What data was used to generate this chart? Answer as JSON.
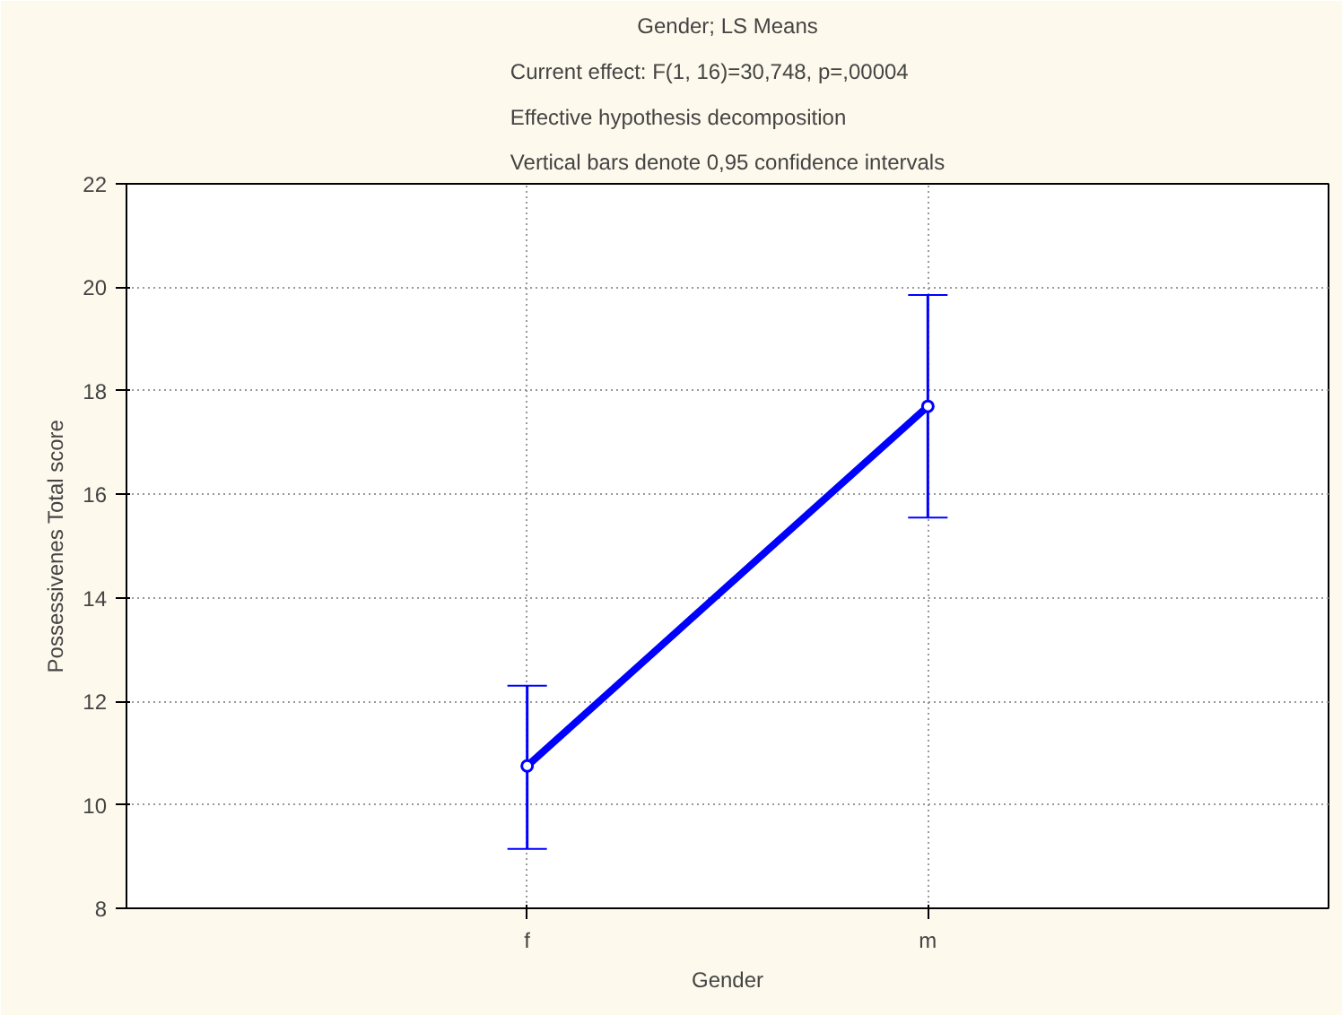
{
  "chart_data": {
    "type": "line",
    "title": "Gender; LS Means",
    "subtitle": "Current effect: F(1, 16)=30,748, p=,00004\nEffective hypothesis decomposition\nVertical bars denote 0,95 confidence intervals",
    "xlabel": "Gender",
    "ylabel": "Possessivenes Total score",
    "categories": [
      "f",
      "m"
    ],
    "series": [
      {
        "color": "#0000ff",
        "values": [
          10.75,
          17.7
        ],
        "errors": [
          [
            9.15,
            12.3
          ],
          [
            15.55,
            19.85
          ]
        ]
      }
    ],
    "ylim": [
      8,
      22
    ],
    "yticks": [
      8,
      10,
      12,
      14,
      16,
      18,
      20,
      22
    ],
    "grid": true,
    "marker": "circle",
    "line_style": "solid"
  }
}
